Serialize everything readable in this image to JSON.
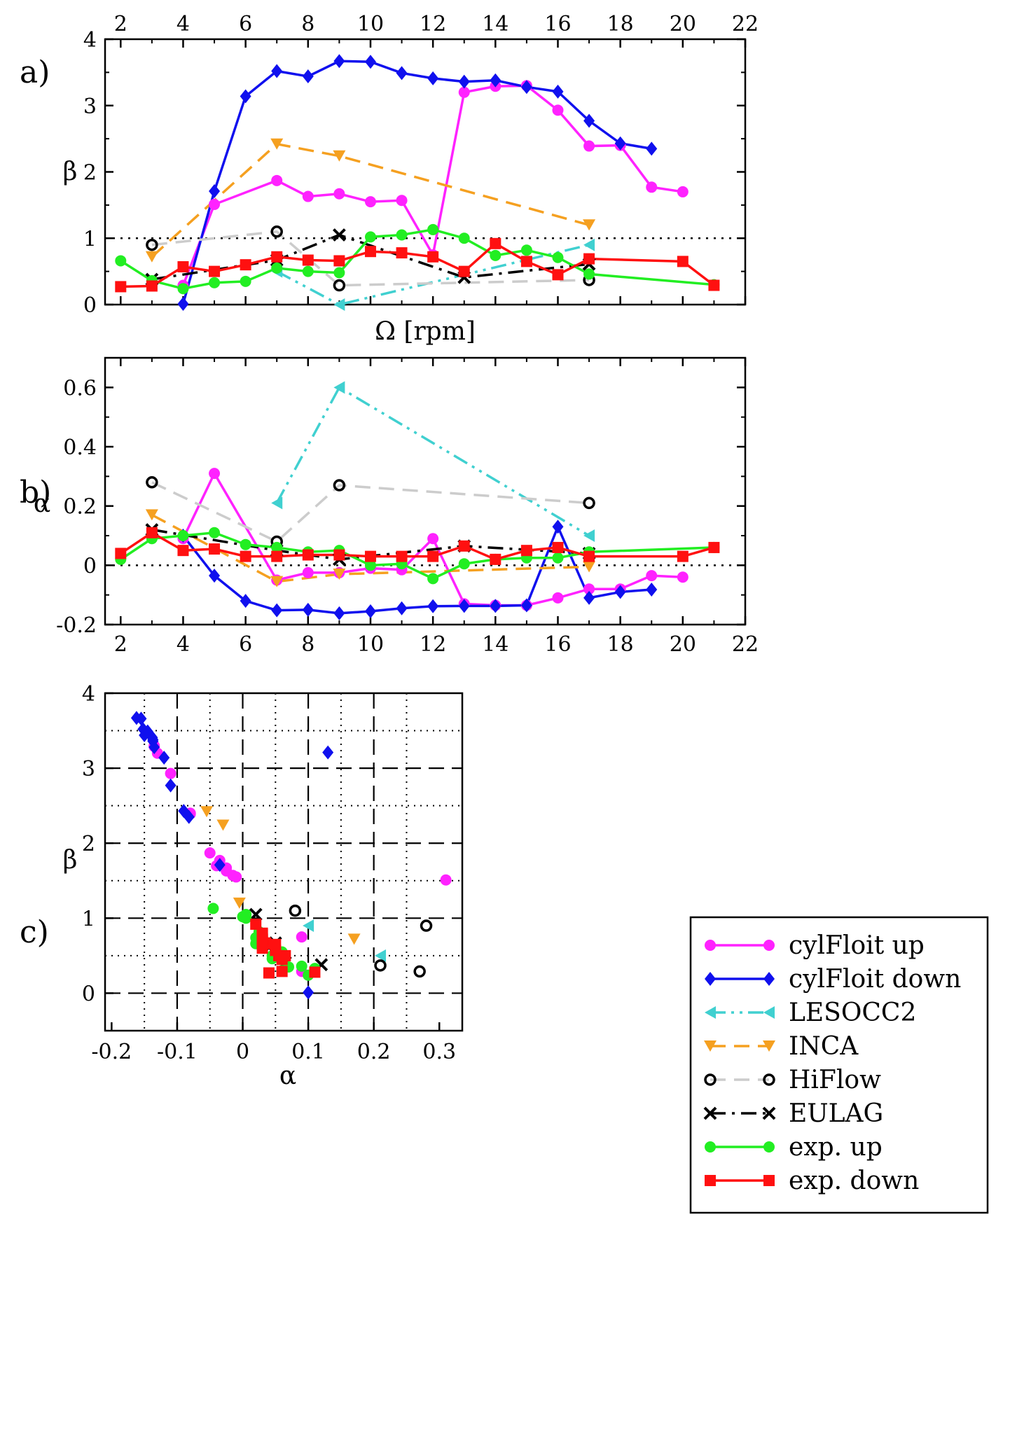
{
  "panel_labels": {
    "a": "a)",
    "b": "b)",
    "c": "c)"
  },
  "chart_data": [
    {
      "panel": "a",
      "type": "line",
      "xlabel": "Ω [rpm]",
      "ylabel": "β",
      "xlim": [
        1.5,
        22
      ],
      "ylim": [
        0,
        4
      ],
      "xticks": [
        "2",
        "4",
        "6",
        "8",
        "10",
        "12",
        "14",
        "16",
        "18",
        "20",
        "22"
      ],
      "yticks": [
        "0",
        "1",
        "2",
        "3",
        "4"
      ],
      "x_axis_position": "top",
      "reference_line_y": 1,
      "series": [
        {
          "name": "cylFloit up",
          "color": "#ff22ff",
          "marker": "circle",
          "dash": "solid",
          "x": [
            4,
            5,
            7,
            8,
            9,
            10,
            11,
            12,
            13,
            14,
            15,
            16,
            17,
            18,
            19,
            20
          ],
          "y": [
            0.29,
            1.51,
            1.87,
            1.63,
            1.67,
            1.55,
            1.57,
            0.75,
            3.2,
            3.29,
            3.3,
            2.93,
            2.39,
            2.4,
            1.77,
            1.7
          ]
        },
        {
          "name": "cylFloit down",
          "color": "#1010ee",
          "marker": "diamond",
          "dash": "solid",
          "x": [
            4,
            5,
            6,
            7,
            8,
            9,
            10,
            11,
            12,
            13,
            14,
            15,
            16,
            17,
            18,
            19
          ],
          "y": [
            0.01,
            1.71,
            3.14,
            3.52,
            3.44,
            3.67,
            3.66,
            3.49,
            3.41,
            3.36,
            3.38,
            3.28,
            3.21,
            2.77,
            2.43,
            2.35
          ]
        },
        {
          "name": "LESOCC2",
          "color": "#40d0d0",
          "marker": "tri-left",
          "dash": "dashdotdot",
          "x": [
            7,
            9,
            17
          ],
          "y": [
            0.5,
            0.0,
            0.9
          ]
        },
        {
          "name": "INCA",
          "color": "#f5a020",
          "marker": "tri-down",
          "dash": "dashed",
          "x": [
            3,
            7,
            9,
            17
          ],
          "y": [
            0.72,
            2.42,
            2.24,
            1.2
          ]
        },
        {
          "name": "HiFlow",
          "color": "#000000",
          "marker": "open-circle",
          "dash": "dashed",
          "line_color": "#cccccc",
          "x": [
            3,
            7,
            9,
            17
          ],
          "y": [
            0.9,
            1.1,
            0.29,
            0.37
          ]
        },
        {
          "name": "EULAG",
          "color": "#000000",
          "marker": "x",
          "dash": "dashdot",
          "x": [
            3,
            7,
            9,
            13,
            17
          ],
          "y": [
            0.38,
            0.67,
            1.05,
            0.41,
            0.61
          ]
        },
        {
          "name": "exp. up",
          "color": "#22ee22",
          "marker": "circle",
          "dash": "solid",
          "x": [
            2,
            3,
            4,
            5,
            6,
            7,
            8,
            9,
            10,
            11,
            12,
            13,
            14,
            15,
            16,
            17,
            21
          ],
          "y": [
            0.66,
            0.36,
            0.24,
            0.33,
            0.35,
            0.55,
            0.5,
            0.48,
            1.02,
            1.05,
            1.13,
            1.0,
            0.74,
            0.82,
            0.71,
            0.46,
            0.3
          ]
        },
        {
          "name": "exp. down",
          "color": "#ff1010",
          "marker": "square",
          "dash": "solid",
          "x": [
            2,
            3,
            4,
            5,
            6,
            7,
            8,
            9,
            10,
            11,
            12,
            13,
            14,
            15,
            16,
            17,
            20,
            21
          ],
          "y": [
            0.27,
            0.28,
            0.57,
            0.5,
            0.6,
            0.72,
            0.67,
            0.66,
            0.8,
            0.78,
            0.72,
            0.5,
            0.92,
            0.65,
            0.45,
            0.69,
            0.65,
            0.29
          ]
        }
      ]
    },
    {
      "panel": "b",
      "type": "line",
      "xlabel": "",
      "ylabel": "α",
      "xlim": [
        1.5,
        22
      ],
      "ylim": [
        -0.2,
        0.7
      ],
      "xticks": [
        "2",
        "4",
        "6",
        "8",
        "10",
        "12",
        "14",
        "16",
        "18",
        "20",
        "22"
      ],
      "yticks": [
        "-0.2",
        "0",
        "0.2",
        "0.4",
        "0.6"
      ],
      "reference_line_y": 0,
      "series": [
        {
          "name": "cylFloit up",
          "x": [
            4,
            5,
            7,
            8,
            9,
            10,
            11,
            12,
            13,
            14,
            15,
            16,
            17,
            18,
            19,
            20
          ],
          "y": [
            0.09,
            0.31,
            -0.05,
            -0.025,
            -0.025,
            -0.01,
            -0.015,
            0.09,
            -0.13,
            -0.135,
            -0.135,
            -0.11,
            -0.08,
            -0.08,
            -0.035,
            -0.04
          ]
        },
        {
          "name": "cylFloit down",
          "x": [
            4,
            5,
            6,
            7,
            8,
            9,
            10,
            11,
            12,
            13,
            14,
            15,
            16,
            17,
            18,
            19
          ],
          "y": [
            0.1,
            -0.035,
            -0.12,
            -0.152,
            -0.15,
            -0.162,
            -0.155,
            -0.145,
            -0.138,
            -0.137,
            -0.137,
            -0.135,
            0.13,
            -0.11,
            -0.09,
            -0.082
          ]
        },
        {
          "name": "LESOCC2",
          "x": [
            7,
            9,
            17
          ],
          "y": [
            0.21,
            0.6,
            0.1
          ]
        },
        {
          "name": "INCA",
          "x": [
            3,
            7,
            9,
            17
          ],
          "y": [
            0.17,
            -0.055,
            -0.03,
            -0.005
          ]
        },
        {
          "name": "HiFlow",
          "x": [
            3,
            7,
            9,
            17
          ],
          "y": [
            0.28,
            0.08,
            0.27,
            0.21
          ]
        },
        {
          "name": "EULAG",
          "x": [
            3,
            7,
            9,
            13,
            17
          ],
          "y": [
            0.12,
            0.05,
            0.02,
            0.065,
            0.04
          ]
        },
        {
          "name": "exp. up",
          "x": [
            2,
            3,
            4,
            5,
            6,
            7,
            8,
            9,
            10,
            11,
            12,
            13,
            14,
            15,
            16,
            17,
            21
          ],
          "y": [
            0.02,
            0.09,
            0.1,
            0.11,
            0.07,
            0.06,
            0.045,
            0.05,
            0.0,
            0.005,
            -0.045,
            0.005,
            0.02,
            0.025,
            0.025,
            0.045,
            0.06
          ]
        },
        {
          "name": "exp. down",
          "x": [
            2,
            3,
            4,
            5,
            6,
            7,
            8,
            9,
            10,
            11,
            12,
            13,
            14,
            15,
            16,
            17,
            20,
            21
          ],
          "y": [
            0.04,
            0.11,
            0.05,
            0.055,
            0.03,
            0.03,
            0.035,
            0.035,
            0.03,
            0.03,
            0.03,
            0.065,
            0.02,
            0.05,
            0.06,
            0.03,
            0.03,
            0.06
          ]
        }
      ]
    },
    {
      "panel": "c",
      "type": "scatter",
      "xlabel": "α",
      "ylabel": "β",
      "xlim": [
        -0.21,
        0.335
      ],
      "ylim": [
        -0.5,
        4
      ],
      "xticks": [
        "-0.2",
        "-0.1",
        "0",
        "0.1",
        "0.2",
        "0.3"
      ],
      "yticks": [
        "0",
        "1",
        "2",
        "3",
        "4"
      ],
      "major_grid_x": [
        -0.1,
        0,
        0.1,
        0.2
      ],
      "major_grid_y": [
        0,
        1,
        2,
        3
      ],
      "minor_grid_x": [
        -0.15,
        -0.05,
        0.05,
        0.15,
        0.25
      ],
      "minor_grid_y": [
        0.5,
        1.5,
        2.5,
        3.5
      ],
      "note": "points = (alpha, beta) pairs of panel a and b series",
      "legend_position": "right",
      "legend": [
        "cylFloit up",
        "cylFloit down",
        "LESOCC2",
        "INCA",
        "HiFlow",
        "EULAG",
        "exp. up",
        "exp. down"
      ]
    }
  ]
}
